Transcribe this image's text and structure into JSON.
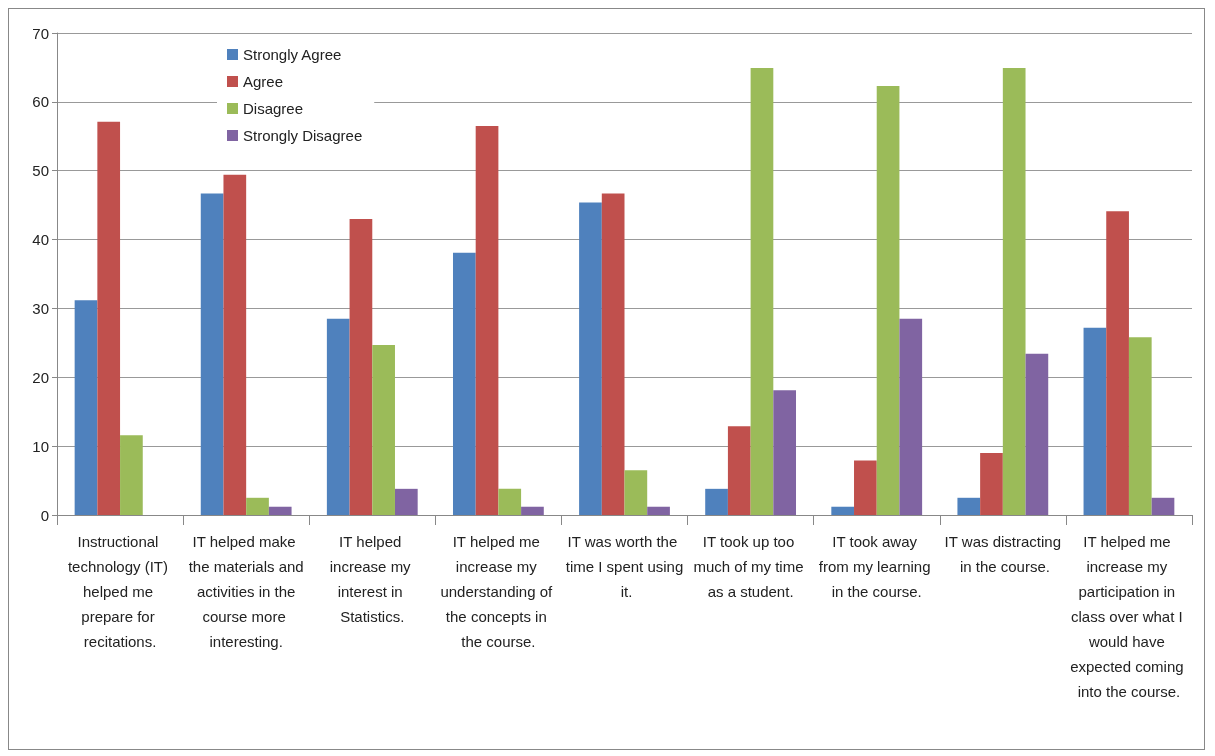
{
  "chart_data": {
    "type": "bar",
    "categories": [
      "Instructional technology (IT) helped me prepare for recitations.",
      "IT helped make the materials and activities in the course more interesting.",
      "IT helped increase my interest in Statistics.",
      "IT helped me increase my understanding of the concepts in the course.",
      "IT was worth the time I spent using it.",
      "IT took up too much of my time as a student.",
      "IT took away from my learning in the course.",
      "IT was distracting in the course.",
      "IT helped me increase my participation in class over what I would have expected coming into the course."
    ],
    "series": [
      {
        "name": "Strongly Agree",
        "color": "#4f81bd",
        "values": [
          31.2,
          46.7,
          28.5,
          38.1,
          45.4,
          3.8,
          1.2,
          2.5,
          27.2
        ]
      },
      {
        "name": "Agree",
        "color": "#c0504d",
        "values": [
          57.1,
          49.4,
          43.0,
          56.5,
          46.7,
          12.9,
          7.9,
          9.0,
          44.1
        ]
      },
      {
        "name": "Disagree",
        "color": "#9bbb59",
        "values": [
          11.6,
          2.5,
          24.7,
          3.8,
          6.5,
          64.9,
          62.3,
          64.9,
          25.8
        ]
      },
      {
        "name": "Strongly Disagree",
        "color": "#8064a2",
        "values": [
          0,
          1.2,
          3.8,
          1.2,
          1.2,
          18.1,
          28.5,
          23.4,
          2.5
        ]
      }
    ],
    "ylim": [
      0,
      70
    ],
    "yticks": [
      0,
      10,
      20,
      30,
      40,
      50,
      60,
      70
    ],
    "grid": "y",
    "legend": "top left"
  }
}
